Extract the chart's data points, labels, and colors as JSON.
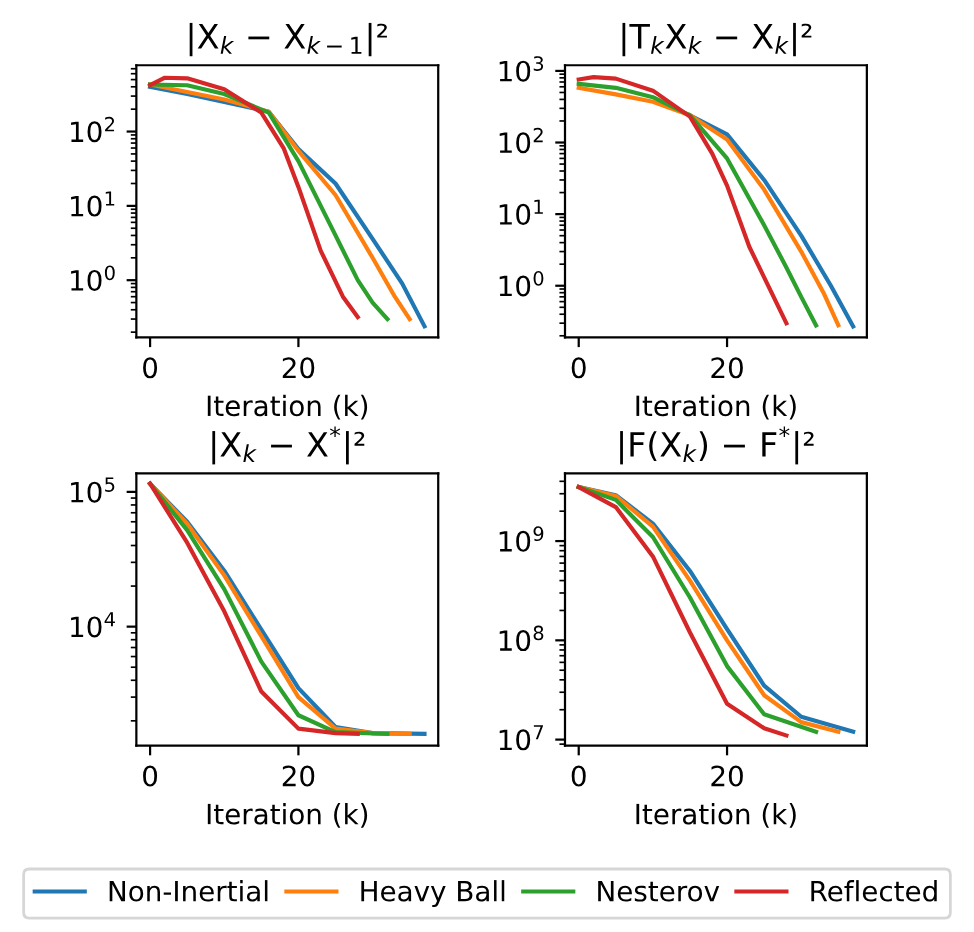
{
  "chart_data": [
    {
      "type": "line",
      "title": "|X$_{k}$ − X$_{k−1}$|²",
      "xlabel": "Iteration (k)",
      "log": "y",
      "legend": "bottom",
      "xlim": [
        -1.85,
        38.85
      ],
      "xticks": [
        0,
        20
      ],
      "ylim": [
        0.17,
        780
      ],
      "yticks": [
        {
          "value": 1,
          "label": "10$^{0}$"
        },
        {
          "value": 10,
          "label": "10$^{1}$"
        },
        {
          "value": 100,
          "label": "10$^{2}$"
        }
      ],
      "series": [
        {
          "name": "Non-Inertial",
          "color": "#1f77b4",
          "x": [
            0,
            5,
            10,
            16,
            20,
            25,
            30,
            34,
            37
          ],
          "values": [
            400,
            320,
            250,
            185,
            58,
            20,
            3.6,
            0.9,
            0.24
          ]
        },
        {
          "name": "Heavy Ball",
          "color": "#ff7f0e",
          "x": [
            0,
            5,
            10,
            16,
            20,
            25,
            30,
            33,
            35
          ],
          "values": [
            430,
            340,
            270,
            185,
            55,
            14,
            2.0,
            0.6,
            0.3
          ]
        },
        {
          "name": "Nesterov",
          "color": "#2ca02c",
          "x": [
            0,
            5,
            10,
            16,
            20,
            25,
            28,
            30,
            32
          ],
          "values": [
            430,
            420,
            320,
            180,
            40,
            4,
            1.0,
            0.5,
            0.3
          ]
        },
        {
          "name": "Reflected",
          "color": "#d62728",
          "x": [
            0,
            2,
            5,
            10,
            15,
            18,
            20,
            23,
            26,
            28
          ],
          "values": [
            420,
            530,
            520,
            370,
            180,
            60,
            18,
            2.5,
            0.6,
            0.32
          ]
        }
      ]
    },
    {
      "type": "line",
      "title": "|T$_{k}$X$_{k}$ − X$_{k}$|²",
      "xlabel": "Iteration (k)",
      "log": "y",
      "xlim": [
        -1.85,
        38.85
      ],
      "xticks": [
        0,
        20
      ],
      "ylim": [
        0.19,
        1200
      ],
      "yticks": [
        {
          "value": 1,
          "label": "10$^{0}$"
        },
        {
          "value": 10,
          "label": "10$^{1}$"
        },
        {
          "value": 100,
          "label": "10$^{2}$"
        },
        {
          "value": 1000,
          "label": "10$^{3}$"
        }
      ],
      "series": [
        {
          "color": "#1f77b4",
          "x": [
            15,
            20,
            25,
            30,
            34,
            37
          ],
          "values": [
            240,
            130,
            30,
            5,
            1.0,
            0.27
          ]
        },
        {
          "color": "#ff7f0e",
          "x": [
            0,
            5,
            10,
            15,
            20,
            25,
            30,
            33,
            35
          ],
          "values": [
            580,
            470,
            370,
            240,
            110,
            22,
            3,
            0.8,
            0.28
          ]
        },
        {
          "color": "#2ca02c",
          "x": [
            0,
            5,
            10,
            15,
            20,
            25,
            28,
            30,
            32
          ],
          "values": [
            660,
            580,
            430,
            240,
            60,
            7,
            1.8,
            0.7,
            0.28
          ]
        },
        {
          "color": "#d62728",
          "x": [
            0,
            2,
            5,
            10,
            15,
            18,
            20,
            23,
            26,
            28
          ],
          "values": [
            760,
            820,
            780,
            530,
            230,
            70,
            25,
            3.5,
            0.8,
            0.3
          ]
        }
      ]
    },
    {
      "type": "line",
      "title": "|X$_{k}$ − X$^{*}$|²",
      "xlabel": "Iteration (k)",
      "log": "y",
      "xlim": [
        -1.85,
        38.85
      ],
      "xticks": [
        0,
        20
      ],
      "ylim": [
        1310,
        137000
      ],
      "yticks": [
        {
          "value": 10000,
          "label": "10$^{4}$"
        },
        {
          "value": 100000,
          "label": "10$^{5}$"
        }
      ],
      "series": [
        {
          "color": "#1f77b4",
          "x": [
            0,
            5,
            10,
            15,
            20,
            25,
            30,
            37
          ],
          "values": [
            115000,
            60000,
            26000,
            9500,
            3500,
            1800,
            1620,
            1600
          ]
        },
        {
          "color": "#ff7f0e",
          "x": [
            0,
            5,
            10,
            15,
            20,
            25,
            30,
            35
          ],
          "values": [
            115000,
            58000,
            24000,
            8500,
            3000,
            1750,
            1620,
            1600
          ]
        },
        {
          "color": "#2ca02c",
          "x": [
            0,
            5,
            10,
            15,
            20,
            25,
            32
          ],
          "values": [
            115000,
            52000,
            19000,
            5500,
            2200,
            1650,
            1600
          ]
        },
        {
          "color": "#d62728",
          "x": [
            0,
            5,
            10,
            15,
            20,
            25,
            28
          ],
          "values": [
            115000,
            42000,
            13000,
            3300,
            1750,
            1620,
            1600
          ]
        }
      ]
    },
    {
      "type": "line",
      "title": "|F(X$_{k}$) − F$^{*}$|²",
      "xlabel": "Iteration (k)",
      "log": "y",
      "xlim": [
        -1.85,
        38.85
      ],
      "xticks": [
        0,
        20
      ],
      "ylim": [
        8700000,
        4800000000
      ],
      "yticks": [
        {
          "value": 10000000,
          "label": "10$^{7}$"
        },
        {
          "value": 100000000,
          "label": "10$^{8}$"
        },
        {
          "value": 1000000000,
          "label": "10$^{9}$"
        }
      ],
      "series": [
        {
          "color": "#1f77b4",
          "x": [
            0,
            5,
            10,
            15,
            20,
            25,
            30,
            37
          ],
          "values": [
            3500000000,
            2900000000,
            1500000000,
            500000000,
            130000000,
            35000000,
            17000000,
            12000000
          ]
        },
        {
          "color": "#ff7f0e",
          "x": [
            0,
            5,
            10,
            15,
            20,
            25,
            30,
            35
          ],
          "values": [
            3500000000,
            2850000000,
            1400000000,
            400000000,
            100000000,
            28000000,
            15000000,
            12000000
          ]
        },
        {
          "color": "#2ca02c",
          "x": [
            0,
            5,
            10,
            15,
            20,
            25,
            32
          ],
          "values": [
            3500000000,
            2600000000,
            1100000000,
            270000000,
            55000000,
            18000000,
            12000000
          ]
        },
        {
          "color": "#d62728",
          "x": [
            0,
            5,
            10,
            15,
            20,
            25,
            28
          ],
          "values": [
            3500000000,
            2200000000,
            700000000,
            120000000,
            23000000,
            13000000,
            11000000
          ]
        }
      ]
    }
  ]
}
